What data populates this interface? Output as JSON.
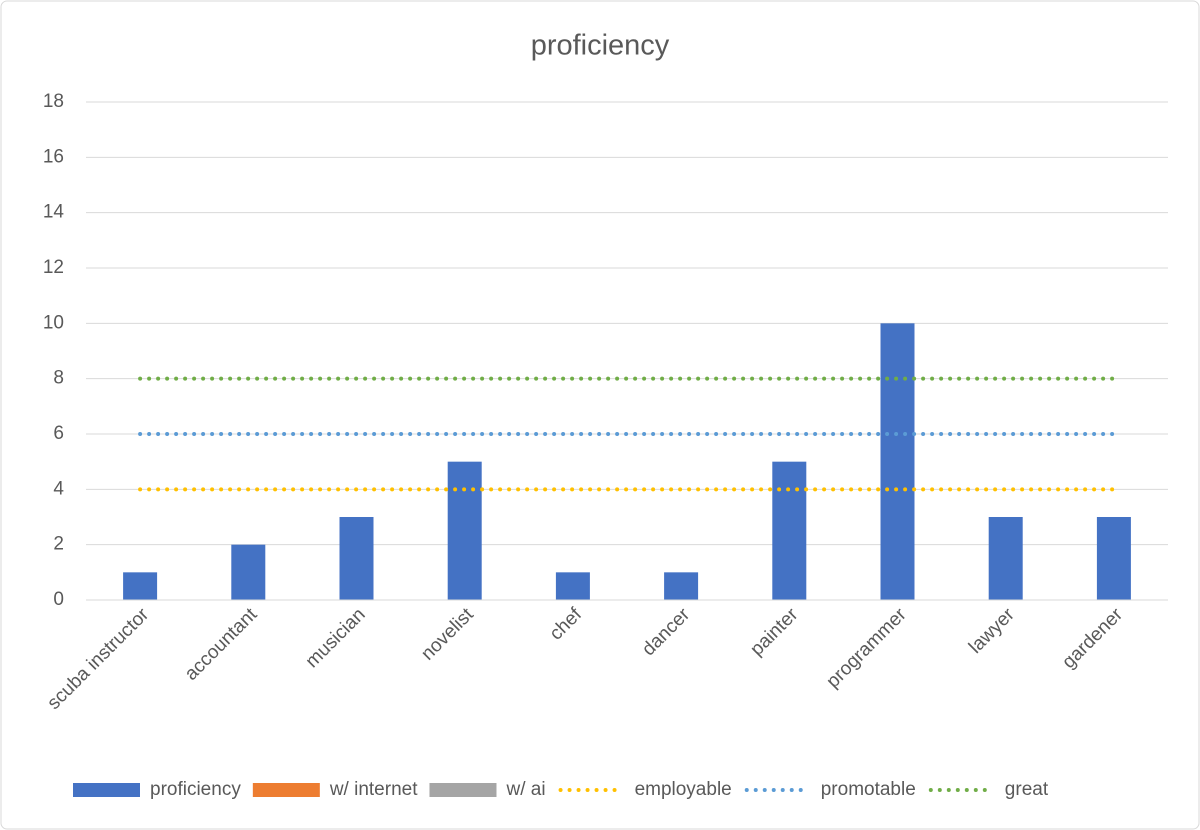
{
  "chart_data": {
    "type": "bar",
    "title": "proficiency",
    "categories": [
      "scuba instructor",
      "accountant",
      "musician",
      "novelist",
      "chef",
      "dancer",
      "painter",
      "programmer",
      "lawyer",
      "gardener"
    ],
    "series": [
      {
        "name": "proficiency",
        "type": "bar",
        "color": "#4472c4",
        "values": [
          1,
          2,
          3,
          5,
          1,
          1,
          5,
          10,
          3,
          3
        ]
      },
      {
        "name": "w/ internet",
        "type": "bar",
        "color": "#ed7d31",
        "values": [
          null,
          null,
          null,
          null,
          null,
          null,
          null,
          null,
          null,
          null
        ]
      },
      {
        "name": "w/ ai",
        "type": "bar",
        "color": "#a5a5a5",
        "values": [
          null,
          null,
          null,
          null,
          null,
          null,
          null,
          null,
          null,
          null
        ]
      },
      {
        "name": "employable",
        "type": "line",
        "color": "#ffc000",
        "values": [
          4,
          4,
          4,
          4,
          4,
          4,
          4,
          4,
          4,
          4
        ]
      },
      {
        "name": "promotable",
        "type": "line",
        "color": "#5b9bd5",
        "values": [
          6,
          6,
          6,
          6,
          6,
          6,
          6,
          6,
          6,
          6
        ]
      },
      {
        "name": "great",
        "type": "line",
        "color": "#70ad47",
        "values": [
          8,
          8,
          8,
          8,
          8,
          8,
          8,
          8,
          8,
          8
        ]
      }
    ],
    "ylim": [
      0,
      18
    ],
    "yticks": [
      0,
      2,
      4,
      6,
      8,
      10,
      12,
      14,
      16,
      18
    ],
    "grid": true,
    "legend": "bottom"
  }
}
